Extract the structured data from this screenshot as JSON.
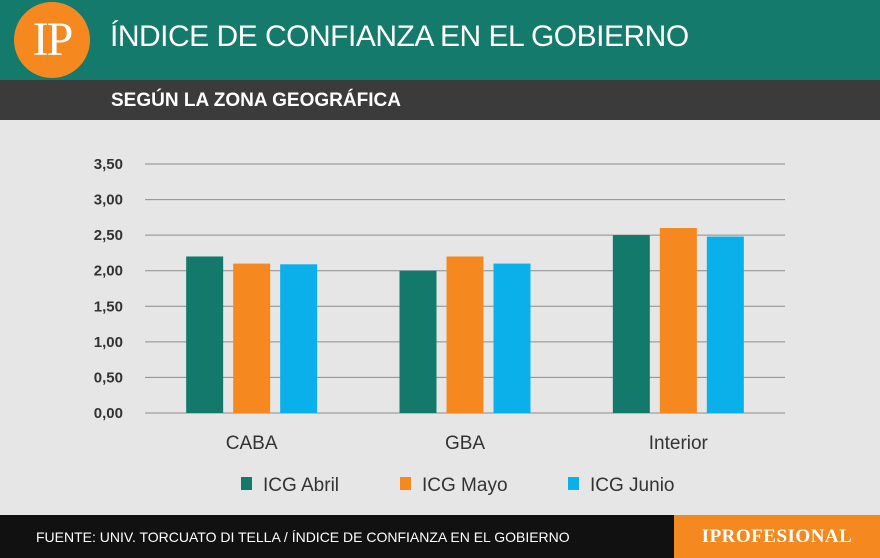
{
  "header": {
    "logo_text": "IP",
    "title": "ÍNDICE DE CONFIANZA EN EL GOBIERNO"
  },
  "subheader": {
    "subtitle": "SEGÚN LA ZONA GEOGRÁFICA"
  },
  "colors": {
    "header_bg": "#147a6b",
    "subheader_bg": "#3b3b3b",
    "accent_orange": "#f5891f",
    "footer_bg": "#111111"
  },
  "chart_data": {
    "type": "bar",
    "categories": [
      "CABA",
      "GBA",
      "Interior"
    ],
    "series": [
      {
        "name": "ICG Abril",
        "color": "#137a6b",
        "values": [
          2.2,
          2.0,
          2.5
        ]
      },
      {
        "name": "ICG Mayo",
        "color": "#f5891f",
        "values": [
          2.1,
          2.2,
          2.6
        ]
      },
      {
        "name": "ICG Junio",
        "color": "#0ab0ea",
        "values": [
          2.09,
          2.1,
          2.48
        ]
      }
    ],
    "y_ticks": [
      "3,50",
      "3,00",
      "2,50",
      "2,00",
      "1,50",
      "1,00",
      "0,50",
      "0,00"
    ],
    "ylim": [
      0,
      3.5
    ],
    "grid": true,
    "legend_position": "bottom"
  },
  "footer": {
    "source": "FUENTE: UNIV. TORCUATO DI TELLA / ÍNDICE DE CONFIANZA EN EL GOBIERNO",
    "brand": "IPROFESIONAL"
  }
}
